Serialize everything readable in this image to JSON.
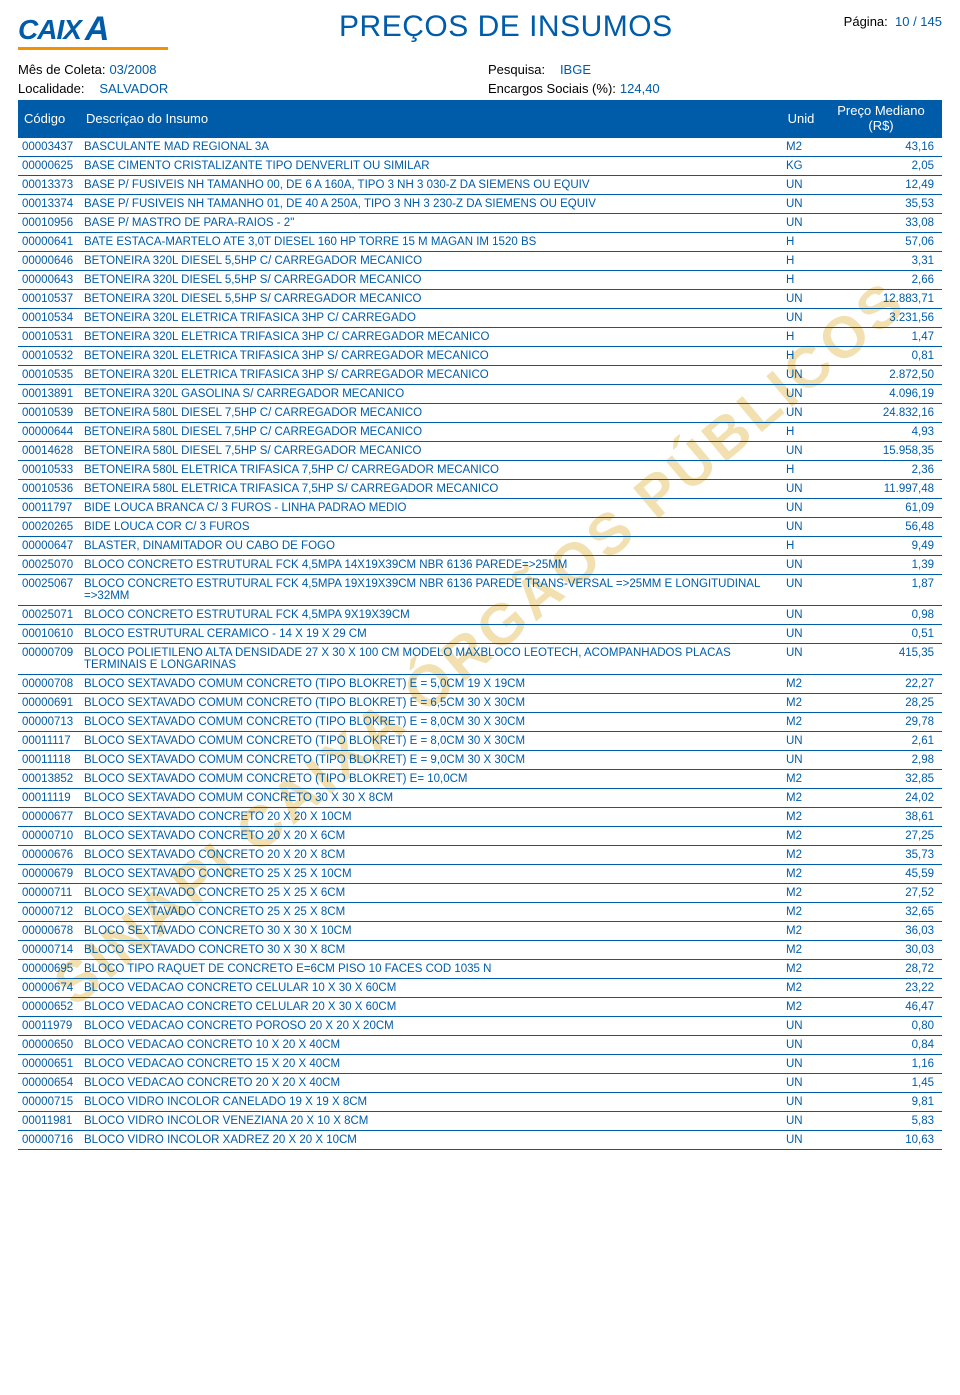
{
  "header": {
    "logo_text": "CAIX",
    "logo_x": "A",
    "title": "PREÇOS DE INSUMOS",
    "page_label": "Página:",
    "page_value": "10 / 145"
  },
  "meta": {
    "mes_label": "Mês de Coleta:",
    "mes_value": "03/2008",
    "pesq_label": "Pesquisa:",
    "pesq_value": "IBGE",
    "loc_label": "Localidade:",
    "loc_value": "SALVADOR",
    "enc_label": "Encargos Sociais (%):",
    "enc_value": "124,40"
  },
  "cols": {
    "code": "Código",
    "desc": "Descriçao do Insumo",
    "unid": "Unid",
    "price": "Preço Mediano (R$)"
  },
  "watermark": "SINAPI CAIXA ÓRGÃOS PÚBLICOS",
  "rows": [
    {
      "c": "00003437",
      "d": "BASCULANTE MAD REGIONAL 3A",
      "u": "M2",
      "p": "43,16"
    },
    {
      "c": "00000625",
      "d": "BASE CIMENTO CRISTALIZANTE TIPO DENVERLIT OU SIMILAR",
      "u": "KG",
      "p": "2,05"
    },
    {
      "c": "00013373",
      "d": "BASE P/ FUSIVEIS NH TAMANHO 00, DE 6 A 160A, TIPO 3 NH 3 030-Z DA SIEMENS OU EQUIV",
      "u": "UN",
      "p": "12,49"
    },
    {
      "c": "00013374",
      "d": "BASE P/ FUSIVEIS NH TAMANHO 01, DE 40 A 250A, TIPO 3 NH 3 230-Z DA SIEMENS OU EQUIV",
      "u": "UN",
      "p": "35,53"
    },
    {
      "c": "00010956",
      "d": "BASE P/ MASTRO DE PARA-RAIOS - 2\"",
      "u": "UN",
      "p": "33,08"
    },
    {
      "c": "00000641",
      "d": "BATE ESTACA-MARTELO ATE 3,0T DIESEL 160 HP TORRE 15 M MAGAN IM 1520 BS",
      "u": "H",
      "p": "57,06"
    },
    {
      "c": "00000646",
      "d": "BETONEIRA 320L DIESEL 5,5HP C/ CARREGADOR MECANICO",
      "u": "H",
      "p": "3,31"
    },
    {
      "c": "00000643",
      "d": "BETONEIRA 320L DIESEL 5,5HP S/ CARREGADOR MECANICO",
      "u": "H",
      "p": "2,66"
    },
    {
      "c": "00010537",
      "d": "BETONEIRA 320L DIESEL 5,5HP S/ CARREGADOR MECANICO",
      "u": "UN",
      "p": "12.883,71"
    },
    {
      "c": "00010534",
      "d": "BETONEIRA 320L ELETRICA TRIFASICA 3HP C/ CARREGADO",
      "u": "UN",
      "p": "3.231,56"
    },
    {
      "c": "00010531",
      "d": "BETONEIRA 320L ELETRICA TRIFASICA 3HP C/ CARREGADOR MECANICO",
      "u": "H",
      "p": "1,47"
    },
    {
      "c": "00010532",
      "d": "BETONEIRA 320L ELETRICA TRIFASICA 3HP S/ CARREGADOR MECANICO",
      "u": "H",
      "p": "0,81"
    },
    {
      "c": "00010535",
      "d": "BETONEIRA 320L ELETRICA TRIFASICA 3HP S/ CARREGADOR MECANICO",
      "u": "UN",
      "p": "2.872,50"
    },
    {
      "c": "00013891",
      "d": "BETONEIRA 320L GASOLINA S/ CARREGADOR MECANICO",
      "u": "UN",
      "p": "4.096,19"
    },
    {
      "c": "00010539",
      "d": "BETONEIRA 580L DIESEL 7,5HP C/ CARREGADOR MECANICO",
      "u": "UN",
      "p": "24.832,16"
    },
    {
      "c": "00000644",
      "d": "BETONEIRA 580L DIESEL 7,5HP C/ CARREGADOR MECANICO",
      "u": "H",
      "p": "4,93"
    },
    {
      "c": "00014628",
      "d": "BETONEIRA 580L DIESEL 7,5HP S/ CARREGADOR MECANICO",
      "u": "UN",
      "p": "15.958,35"
    },
    {
      "c": "00010533",
      "d": "BETONEIRA 580L ELETRICA TRIFASICA 7,5HP C/ CARREGADOR MECANICO",
      "u": "H",
      "p": "2,36"
    },
    {
      "c": "00010536",
      "d": "BETONEIRA 580L ELETRICA TRIFASICA 7,5HP S/ CARREGADOR MECANICO",
      "u": "UN",
      "p": "11.997,48"
    },
    {
      "c": "00011797",
      "d": "BIDE LOUCA BRANCA C/ 3 FUROS - LINHA PADRAO MEDIO",
      "u": "UN",
      "p": "61,09"
    },
    {
      "c": "00020265",
      "d": "BIDE LOUCA COR C/ 3 FUROS",
      "u": "UN",
      "p": "56,48"
    },
    {
      "c": "00000647",
      "d": "BLASTER, DINAMITADOR OU CABO DE FOGO",
      "u": "H",
      "p": "9,49"
    },
    {
      "c": "00025070",
      "d": "BLOCO CONCRETO ESTRUTURAL FCK 4,5MPA 14X19X39CM NBR 6136 PAREDE=>25MM",
      "u": "UN",
      "p": "1,39"
    },
    {
      "c": "00025067",
      "d": "BLOCO CONCRETO ESTRUTURAL FCK 4,5MPA 19X19X39CM NBR 6136 PAREDE TRANS-VERSAL =>25MM E LONGITUDINAL =>32MM",
      "u": "UN",
      "p": "1,87"
    },
    {
      "c": "00025071",
      "d": "BLOCO CONCRETO ESTRUTURAL FCK 4,5MPA 9X19X39CM",
      "u": "UN",
      "p": "0,98"
    },
    {
      "c": "00010610",
      "d": "BLOCO ESTRUTURAL CERAMICO - 14 X 19 X 29 CM",
      "u": "UN",
      "p": "0,51"
    },
    {
      "c": "00000709",
      "d": "BLOCO POLIETILENO ALTA DENSIDADE 27 X 30 X 100 CM MODELO MAXBLOCO  LEOTECH, ACOMPANHADOS PLACAS  TERMINAIS  E LONGARINAS",
      "u": "UN",
      "p": "415,35"
    },
    {
      "c": "00000708",
      "d": "BLOCO SEXTAVADO COMUM CONCRETO (TIPO BLOKRET) E = 5,0CM 19 X 19CM",
      "u": "M2",
      "p": "22,27"
    },
    {
      "c": "00000691",
      "d": "BLOCO SEXTAVADO COMUM CONCRETO (TIPO BLOKRET) E = 6,5CM 30 X 30CM",
      "u": "M2",
      "p": "28,25"
    },
    {
      "c": "00000713",
      "d": "BLOCO SEXTAVADO COMUM CONCRETO (TIPO BLOKRET) E = 8,0CM 30 X 30CM",
      "u": "M2",
      "p": "29,78"
    },
    {
      "c": "00011117",
      "d": "BLOCO SEXTAVADO COMUM CONCRETO (TIPO BLOKRET) E = 8,0CM 30 X 30CM",
      "u": "UN",
      "p": "2,61"
    },
    {
      "c": "00011118",
      "d": "BLOCO SEXTAVADO COMUM CONCRETO (TIPO BLOKRET) E = 9,0CM 30 X 30CM",
      "u": "UN",
      "p": "2,98"
    },
    {
      "c": "00013852",
      "d": "BLOCO SEXTAVADO COMUM CONCRETO (TIPO BLOKRET) E= 10,0CM",
      "u": "M2",
      "p": "32,85"
    },
    {
      "c": "00011119",
      "d": "BLOCO SEXTAVADO COMUM CONCRETO 30 X 30 X 8CM",
      "u": "M2",
      "p": "24,02"
    },
    {
      "c": "00000677",
      "d": "BLOCO SEXTAVADO CONCRETO 20 X 20 X 10CM",
      "u": "M2",
      "p": "38,61"
    },
    {
      "c": "00000710",
      "d": "BLOCO SEXTAVADO CONCRETO 20 X 20 X 6CM",
      "u": "M2",
      "p": "27,25"
    },
    {
      "c": "00000676",
      "d": "BLOCO SEXTAVADO CONCRETO 20 X 20 X 8CM",
      "u": "M2",
      "p": "35,73"
    },
    {
      "c": "00000679",
      "d": "BLOCO SEXTAVADO CONCRETO 25 X 25 X 10CM",
      "u": "M2",
      "p": "45,59"
    },
    {
      "c": "00000711",
      "d": "BLOCO SEXTAVADO CONCRETO 25 X 25 X 6CM",
      "u": "M2",
      "p": "27,52"
    },
    {
      "c": "00000712",
      "d": "BLOCO SEXTAVADO CONCRETO 25 X 25 X 8CM",
      "u": "M2",
      "p": "32,65"
    },
    {
      "c": "00000678",
      "d": "BLOCO SEXTAVADO CONCRETO 30 X 30 X 10CM",
      "u": "M2",
      "p": "36,03"
    },
    {
      "c": "00000714",
      "d": "BLOCO SEXTAVADO CONCRETO 30 X 30 X 8CM",
      "u": "M2",
      "p": "30,03"
    },
    {
      "c": "00000695",
      "d": "BLOCO TIPO RAQUET DE CONCRETO E=6CM PISO 10 FACES COD 1035 N",
      "u": "M2",
      "p": "28,72"
    },
    {
      "c": "00000674",
      "d": "BLOCO VEDACAO CONCRETO CELULAR 10 X 30 X 60CM",
      "u": "M2",
      "p": "23,22"
    },
    {
      "c": "00000652",
      "d": "BLOCO VEDACAO CONCRETO CELULAR 20 X 30 X 60CM",
      "u": "M2",
      "p": "46,47"
    },
    {
      "c": "00011979",
      "d": "BLOCO VEDACAO CONCRETO POROSO 20 X 20 X 20CM",
      "u": "UN",
      "p": "0,80"
    },
    {
      "c": "00000650",
      "d": "BLOCO VEDACAO CONCRETO 10 X 20 X 40CM",
      "u": "UN",
      "p": "0,84"
    },
    {
      "c": "00000651",
      "d": "BLOCO VEDACAO CONCRETO 15 X 20 X 40CM",
      "u": "UN",
      "p": "1,16"
    },
    {
      "c": "00000654",
      "d": "BLOCO VEDACAO CONCRETO 20 X 20 X 40CM",
      "u": "UN",
      "p": "1,45"
    },
    {
      "c": "00000715",
      "d": "BLOCO VIDRO INCOLOR CANELADO 19 X 19 X 8CM",
      "u": "UN",
      "p": "9,81"
    },
    {
      "c": "00011981",
      "d": "BLOCO VIDRO INCOLOR VENEZIANA 20 X 10 X 8CM",
      "u": "UN",
      "p": "5,83"
    },
    {
      "c": "00000716",
      "d": "BLOCO VIDRO INCOLOR XADREZ 20 X 20 X 10CM",
      "u": "UN",
      "p": "10,63"
    }
  ]
}
